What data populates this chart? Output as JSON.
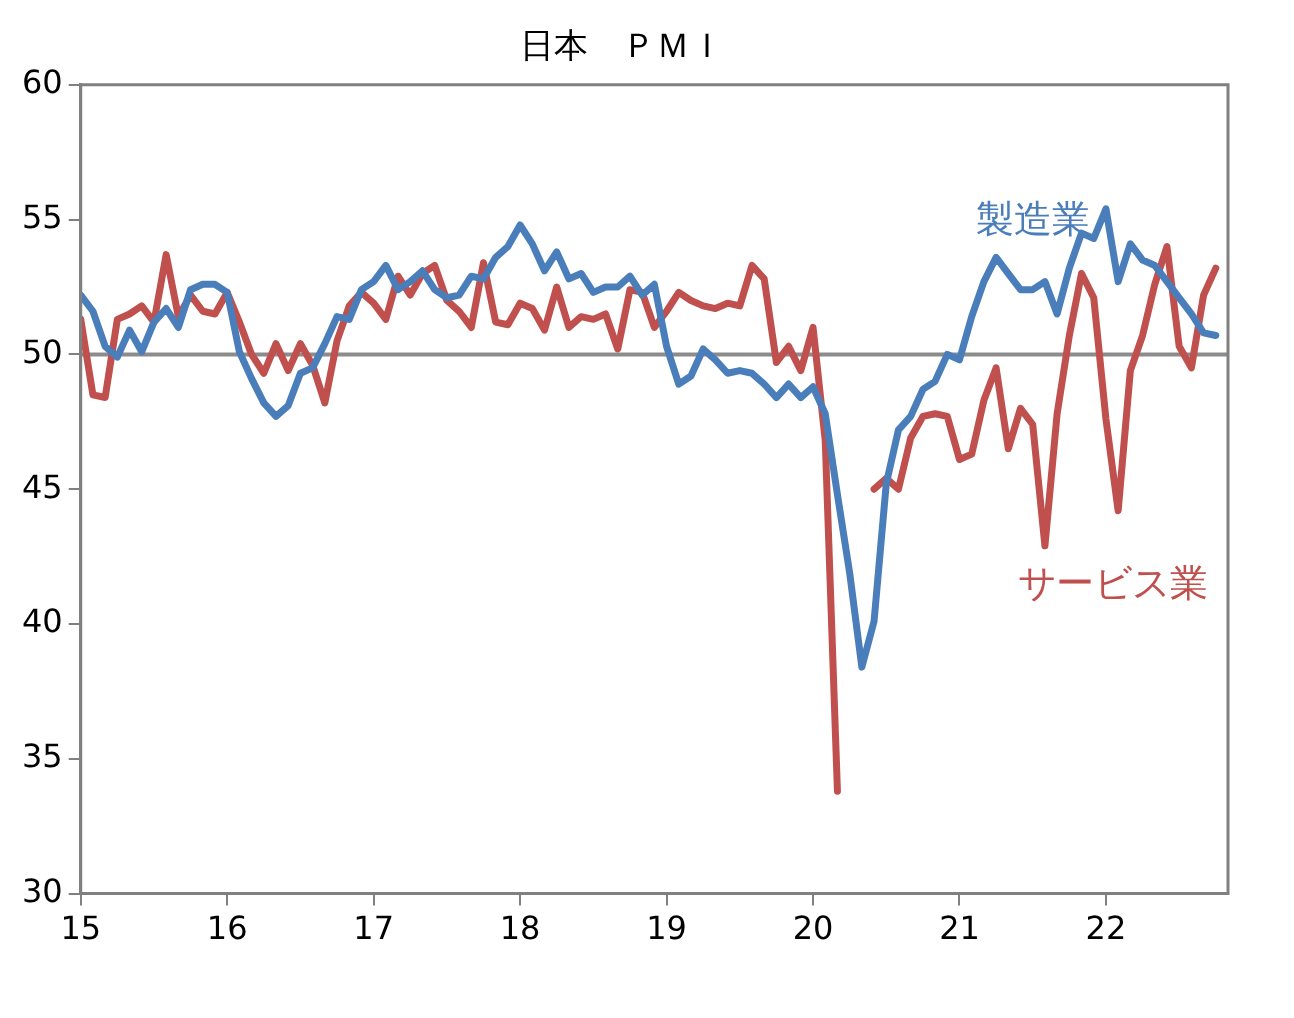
{
  "chart_data": {
    "type": "line",
    "title": "日本　ＰＭＩ",
    "x": [
      "2015-01",
      "2015-02",
      "2015-03",
      "2015-04",
      "2015-05",
      "2015-06",
      "2015-07",
      "2015-08",
      "2015-09",
      "2015-10",
      "2015-11",
      "2015-12",
      "2016-01",
      "2016-02",
      "2016-03",
      "2016-04",
      "2016-05",
      "2016-06",
      "2016-07",
      "2016-08",
      "2016-09",
      "2016-10",
      "2016-11",
      "2016-12",
      "2017-01",
      "2017-02",
      "2017-03",
      "2017-04",
      "2017-05",
      "2017-06",
      "2017-07",
      "2017-08",
      "2017-09",
      "2017-10",
      "2017-11",
      "2017-12",
      "2018-01",
      "2018-02",
      "2018-03",
      "2018-04",
      "2018-05",
      "2018-06",
      "2018-07",
      "2018-08",
      "2018-09",
      "2018-10",
      "2018-11",
      "2018-12",
      "2019-01",
      "2019-02",
      "2019-03",
      "2019-04",
      "2019-05",
      "2019-06",
      "2019-07",
      "2019-08",
      "2019-09",
      "2019-10",
      "2019-11",
      "2019-12",
      "2020-01",
      "2020-02",
      "2020-03",
      "2020-04",
      "2020-05",
      "2020-06",
      "2020-07",
      "2020-08",
      "2020-09",
      "2020-10",
      "2020-11",
      "2020-12",
      "2021-01",
      "2021-02",
      "2021-03",
      "2021-04",
      "2021-05",
      "2021-06",
      "2021-07",
      "2021-08",
      "2021-09",
      "2021-10",
      "2021-11",
      "2021-12",
      "2022-01",
      "2022-02",
      "2022-03",
      "2022-04",
      "2022-05",
      "2022-06",
      "2022-07",
      "2022-08",
      "2022-09",
      "2022-10"
    ],
    "series": [
      {
        "name": "製造業",
        "color": "#4a7ebb",
        "values": [
          52.2,
          51.6,
          50.3,
          49.9,
          50.9,
          50.1,
          51.2,
          51.7,
          51.0,
          52.4,
          52.6,
          52.6,
          52.3,
          50.1,
          49.1,
          48.2,
          47.7,
          48.1,
          49.3,
          49.5,
          50.4,
          51.4,
          51.3,
          52.4,
          52.7,
          53.3,
          52.4,
          52.7,
          53.1,
          52.4,
          52.1,
          52.2,
          52.9,
          52.8,
          53.6,
          54.0,
          54.8,
          54.1,
          53.1,
          53.8,
          52.8,
          53.0,
          52.3,
          52.5,
          52.5,
          52.9,
          52.2,
          52.6,
          50.3,
          48.9,
          49.2,
          50.2,
          49.8,
          49.3,
          49.4,
          49.3,
          48.9,
          48.4,
          48.9,
          48.4,
          48.8,
          47.8,
          44.8,
          41.9,
          38.4,
          40.1,
          45.2,
          47.2,
          47.7,
          48.7,
          49.0,
          50.0,
          49.8,
          51.4,
          52.7,
          53.6,
          53.0,
          52.4,
          52.4,
          52.7,
          51.5,
          53.2,
          54.5,
          54.3,
          55.4,
          52.7,
          54.1,
          53.5,
          53.3,
          52.7,
          52.1,
          51.5,
          50.8,
          50.7
        ]
      },
      {
        "name": "サービス業",
        "color": "#c0504d",
        "values": [
          51.3,
          48.5,
          48.4,
          51.3,
          51.5,
          51.8,
          51.2,
          53.7,
          51.4,
          52.2,
          51.6,
          51.5,
          52.3,
          51.2,
          50.0,
          49.3,
          50.4,
          49.4,
          50.4,
          49.6,
          48.2,
          50.5,
          51.8,
          52.3,
          51.9,
          51.3,
          52.9,
          52.2,
          53.0,
          53.3,
          52.0,
          51.6,
          51.0,
          53.4,
          51.2,
          51.1,
          51.9,
          51.7,
          50.9,
          52.5,
          51.0,
          51.4,
          51.3,
          51.5,
          50.2,
          52.4,
          52.3,
          51.0,
          51.6,
          52.3,
          52.0,
          51.8,
          51.7,
          51.9,
          51.8,
          53.3,
          52.8,
          49.7,
          50.3,
          49.4,
          51.0,
          46.8,
          33.8,
          null,
          null,
          45.0,
          45.4,
          45.0,
          46.9,
          47.7,
          47.8,
          47.7,
          46.1,
          46.3,
          48.3,
          49.5,
          46.5,
          48.0,
          47.4,
          42.9,
          47.8,
          50.7,
          53.0,
          52.1,
          47.6,
          44.2,
          49.4,
          50.7,
          52.6,
          54.0,
          50.3,
          49.5,
          52.2,
          53.2
        ]
      }
    ],
    "xlim": [
      "2015-01",
      "2022-11"
    ],
    "xticks": [
      {
        "value": "2015-01",
        "label": "15"
      },
      {
        "value": "2016-01",
        "label": "16"
      },
      {
        "value": "2017-01",
        "label": "17"
      },
      {
        "value": "2018-01",
        "label": "18"
      },
      {
        "value": "2019-01",
        "label": "19"
      },
      {
        "value": "2020-01",
        "label": "20"
      },
      {
        "value": "2021-01",
        "label": "21"
      },
      {
        "value": "2022-01",
        "label": "22"
      }
    ],
    "ylim": [
      30,
      60
    ],
    "yticks": [
      30,
      35,
      40,
      45,
      50,
      55,
      60
    ],
    "ref_lines": [
      {
        "axis": "y",
        "value": 50,
        "color": "#8c8c8c"
      }
    ],
    "grid": false,
    "legend": false,
    "marker": "none",
    "line_style": "solid"
  }
}
